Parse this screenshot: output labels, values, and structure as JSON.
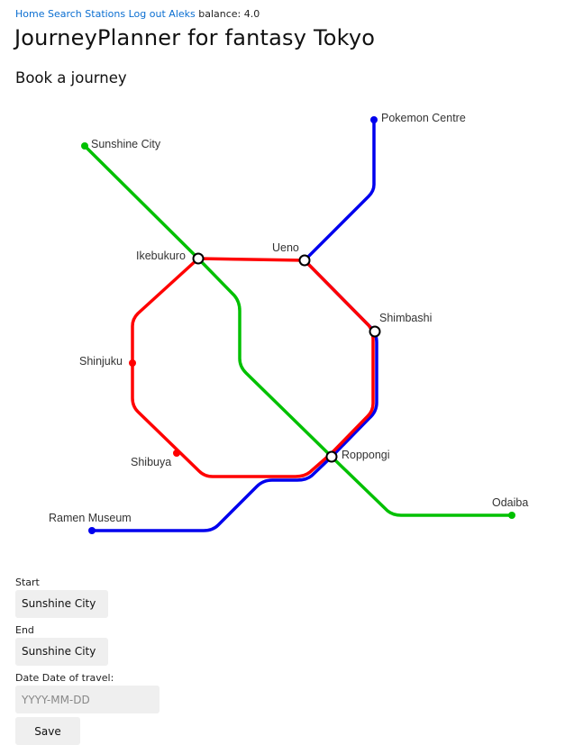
{
  "nav": {
    "links": [
      "Home",
      "Search",
      "Stations",
      "Log out",
      "Aleks"
    ],
    "balance_text": "balance: 4.0"
  },
  "title": "JourneyPlanner for fantasy Tokyo",
  "subtitle": "Book a journey",
  "map": {
    "lines": [
      {
        "color": "#00c000",
        "name": "green"
      },
      {
        "color": "#ff0000",
        "name": "red"
      },
      {
        "color": "#0000ee",
        "name": "blue"
      }
    ],
    "stations": {
      "pokemon_centre": "Pokemon Centre",
      "sunshine_city": "Sunshine City",
      "ikebukuro": "Ikebukuro",
      "ueno": "Ueno",
      "shimbashi": "Shimbashi",
      "shinjuku": "Shinjuku",
      "shibuya": "Shibuya",
      "roppongi": "Roppongi",
      "odaiba": "Odaiba",
      "ramen_museum": "Ramen Museum"
    }
  },
  "form": {
    "start_label": "Start",
    "start_value": "Sunshine City",
    "end_label": "End",
    "end_value": "Sunshine City",
    "date_label": "Date Date of travel:",
    "date_placeholder": "YYYY-MM-DD",
    "save_label": "Save"
  }
}
